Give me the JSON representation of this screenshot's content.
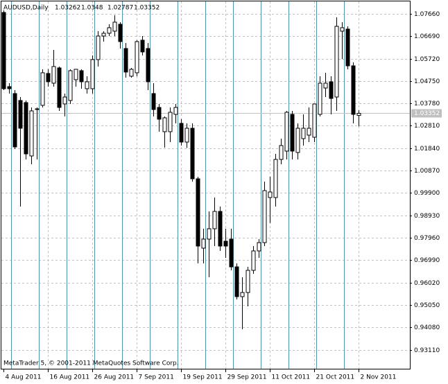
{
  "chart_data": {
    "type": "candlestick",
    "symbol": "AUDUSD,Daily",
    "watermark": "MetaTrader 5, © 2001-2011 MetaQuotes Software Corp.",
    "categories": [
      "4 Aug 2011",
      null,
      null,
      null,
      null,
      null,
      null,
      null,
      "16 Aug 2011",
      null,
      null,
      null,
      null,
      null,
      null,
      null,
      "26 Aug 2011",
      null,
      null,
      null,
      null,
      null,
      null,
      null,
      "7 Sep 2011",
      null,
      null,
      null,
      null,
      null,
      null,
      null,
      "19 Sep 2011",
      null,
      null,
      null,
      null,
      null,
      null,
      null,
      "29 Sep 2011",
      null,
      null,
      null,
      null,
      null,
      null,
      null,
      "11 Oct 2011",
      null,
      null,
      null,
      null,
      null,
      null,
      null,
      "21 Oct 2011",
      null,
      null,
      null,
      null,
      null,
      null,
      null,
      "2 Nov 2011"
    ],
    "open": [
      1.0772,
      1.04507,
      1.04207,
      1.03907,
      1.03817,
      1.01504,
      1.03516,
      1.03697,
      1.05078,
      1.04657,
      1.05318,
      1.03757,
      1.03907,
      1.04808,
      1.05198,
      1.04417,
      1.04417,
      1.05679,
      1.06699,
      1.0682,
      1.0691,
      1.0721,
      1.06159,
      1.04958,
      1.05108,
      1.06519,
      1.06159,
      1.04207,
      1.03606,
      1.02555,
      1.02555,
      1.03306,
      1.02916,
      1.02105,
      1.02705,
      1.00513,
      0.9751,
      0.97901,
      0.98351,
      0.99102,
      0.97811,
      0.97901,
      0.96699,
      0.95409,
      0.95588,
      0.96549,
      0.9739,
      0.9775,
      0.99702,
      0.99702,
      1.01354,
      1.01714,
      1.03306,
      1.01654,
      1.02255,
      1.02405,
      1.02315,
      1.03306,
      1.04447,
      1.04718,
      1.04057,
      1.0691,
      1.07,
      1.05408,
      1.03262
    ],
    "high": [
      1.07811,
      1.04657,
      1.04357,
      1.04057,
      1.03907,
      1.03606,
      1.03606,
      1.05258,
      1.05258,
      1.06099,
      1.05378,
      1.04207,
      1.05258,
      1.05258,
      1.05258,
      1.04958,
      1.05859,
      1.0691,
      1.0691,
      1.0721,
      1.076,
      1.073,
      1.06399,
      1.05318,
      1.06519,
      1.06699,
      1.06399,
      1.04657,
      1.03757,
      1.03216,
      1.03606,
      1.03757,
      1.03096,
      1.02916,
      1.02916,
      1.00603,
      0.98351,
      0.99102,
      0.99702,
      0.99312,
      0.98351,
      0.98351,
      0.9685,
      0.96249,
      0.96699,
      0.976,
      0.97901,
      1.00393,
      1.00603,
      1.01594,
      1.02255,
      1.03456,
      1.03456,
      1.02916,
      1.03306,
      1.03606,
      1.03757,
      1.04958,
      1.05108,
      1.04958,
      1.0751,
      1.073,
      1.0712,
      1.05558,
      1.0348
    ],
    "low": [
      1.04357,
      1.04207,
      1.01805,
      0.99312,
      1.01354,
      1.01144,
      1.01354,
      1.03606,
      1.04507,
      1.04507,
      1.03456,
      1.03216,
      1.03757,
      1.04507,
      1.04417,
      1.04207,
      1.04207,
      1.05378,
      1.06459,
      1.06699,
      1.06699,
      1.06159,
      1.04898,
      1.04898,
      1.04958,
      1.05859,
      1.04357,
      1.03216,
      1.02555,
      1.01865,
      1.02105,
      1.02916,
      1.01955,
      1.01854,
      1.00393,
      0.9685,
      0.9685,
      0.96249,
      0.976,
      0.9739,
      0.9709,
      0.96549,
      0.95288,
      0.93997,
      0.94988,
      0.964,
      0.9709,
      0.976,
      0.986,
      0.99312,
      1.01144,
      1.01354,
      1.01354,
      1.01354,
      1.01955,
      1.02105,
      1.02105,
      1.03216,
      1.04057,
      1.03306,
      1.03456,
      1.057,
      1.05258,
      1.02916,
      1.02787
    ],
    "close": [
      1.04417,
      1.04417,
      1.01895,
      1.02705,
      1.01594,
      1.03456,
      1.03546,
      1.05108,
      1.04718,
      1.05378,
      1.03606,
      1.04057,
      1.05198,
      1.05258,
      1.04718,
      1.04718,
      1.05679,
      1.06699,
      1.0682,
      1.0706,
      1.073,
      1.06459,
      1.05138,
      1.05258,
      1.06459,
      1.06009,
      1.04718,
      1.03516,
      1.03096,
      1.03156,
      1.03396,
      1.03606,
      1.02105,
      1.02705,
      1.00513,
      0.976,
      0.97901,
      0.98351,
      0.99102,
      0.976,
      0.976,
      0.96699,
      0.95409,
      0.95588,
      0.96549,
      0.9739,
      0.9775,
      1.00003,
      0.99943,
      1.01354,
      1.01955,
      1.03396,
      1.01714,
      1.02705,
      1.02705,
      1.02705,
      1.03757,
      1.04657,
      1.04657,
      1.03997,
      1.0712,
      1.0706,
      1.05408,
      1.03306,
      1.03352
    ],
    "bull_color": "#ffffff",
    "bear_color": "#000000",
    "ylim": [
      0.92285,
      1.082
    ],
    "yticks": [
      {
        "value": 1.0766,
        "label": "1.07660"
      },
      {
        "value": 1.0669,
        "label": "1.06690"
      },
      {
        "value": 1.0572,
        "label": "1.05720"
      },
      {
        "value": 1.0475,
        "label": "1.04750"
      },
      {
        "value": 1.0378,
        "label": "1.03780"
      },
      {
        "value": 1.0281,
        "label": "1.02810"
      },
      {
        "value": 1.0184,
        "label": "1.01840"
      },
      {
        "value": 1.0087,
        "label": "1.00870"
      },
      {
        "value": 0.999,
        "label": "0.99900"
      },
      {
        "value": 0.9893,
        "label": "0.98930"
      },
      {
        "value": 0.9796,
        "label": "0.97960"
      },
      {
        "value": 0.9699,
        "label": "0.96990"
      },
      {
        "value": 0.9602,
        "label": "0.96020"
      },
      {
        "value": 0.9505,
        "label": "0.95050"
      },
      {
        "value": 0.9408,
        "label": "0.94080"
      },
      {
        "value": 0.9311,
        "label": "0.93110"
      }
    ],
    "grid": true,
    "period_separators": true
  }
}
